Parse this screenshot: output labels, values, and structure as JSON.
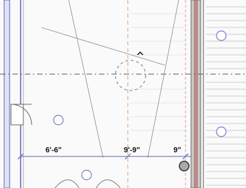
{
  "dimensions": {
    "left": "6'-6\"",
    "middle": "9'-9\"",
    "right": "9\""
  }
}
